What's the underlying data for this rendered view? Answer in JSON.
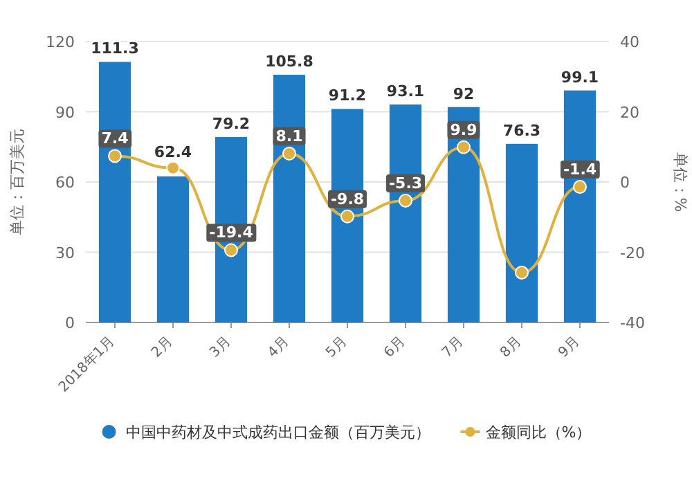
{
  "chart_data": {
    "type": "bar",
    "ylabel": "单位：百万美元",
    "y2label": "单位：%",
    "categories": [
      "2018年1月",
      "2月",
      "3月",
      "4月",
      "5月",
      "6月",
      "7月",
      "8月",
      "9月"
    ],
    "series": [
      {
        "name": "中国中药材及中式成药出口金额（百万美元）",
        "color": "#1f7bc4",
        "values": [
          111.3,
          62.4,
          79.2,
          105.8,
          91.2,
          93.1,
          92,
          76.3,
          99.1
        ],
        "value_labels": [
          "111.3",
          "62.4",
          "79.2",
          "105.8",
          "91.2",
          "93.1",
          "92",
          "76.3",
          "99.1"
        ]
      },
      {
        "name": "金额同比（%）",
        "type": "line",
        "axis": "y2",
        "color": "#dfb13e",
        "marker": "circle",
        "values": [
          7.4,
          4,
          -19.4,
          8.1,
          -9.8,
          -5.3,
          9.9,
          -25.8,
          -1.4
        ],
        "value_labels": [
          "7.4",
          null,
          "-19.4",
          "8.1",
          "-9.8",
          "-5.3",
          "9.9",
          null,
          "-1.4"
        ]
      }
    ],
    "ylim": [
      0,
      120
    ],
    "yticks": [
      0,
      30,
      60,
      90,
      120
    ],
    "y2lim": [
      -40,
      40
    ],
    "y2ticks": [
      -40,
      -20,
      0,
      20,
      40
    ],
    "grid": "y",
    "legend": "bottom"
  }
}
